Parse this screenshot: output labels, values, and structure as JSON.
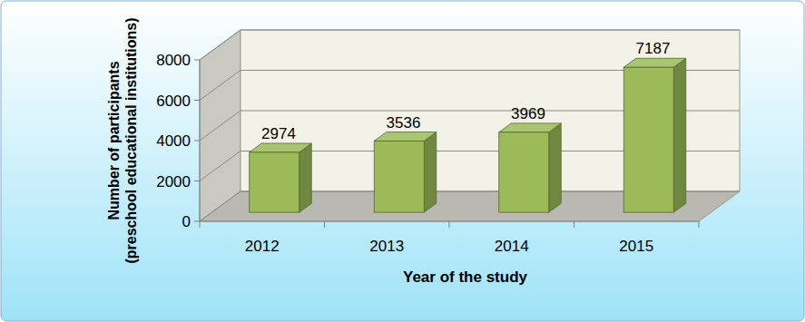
{
  "chart_data": {
    "type": "bar",
    "y_label": [
      "Number of participants",
      "(preschool educational institutions)"
    ],
    "x_label": "Year of the study",
    "categories": [
      "2012",
      "2013",
      "2014",
      "2015"
    ],
    "values": [
      2974,
      3536,
      3969,
      7187
    ],
    "color": "#9bbb59",
    "ylim": [
      0,
      8000
    ],
    "yticks": [
      0,
      2000,
      4000,
      6000,
      8000
    ],
    "grid": true,
    "data_labels": true
  }
}
